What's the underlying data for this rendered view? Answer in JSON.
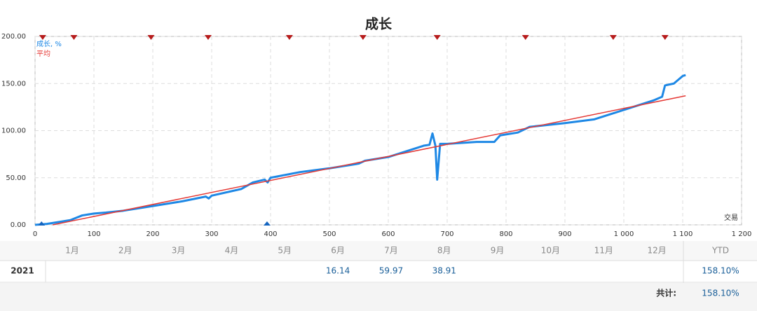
{
  "chart_data": {
    "type": "line",
    "title": "成长",
    "x_label": "交易",
    "x": [
      0,
      20,
      40,
      60,
      80,
      100,
      120,
      150,
      200,
      250,
      290,
      295,
      300,
      350,
      370,
      390,
      395,
      400,
      450,
      500,
      550,
      560,
      600,
      640,
      660,
      670,
      675,
      680,
      683,
      688,
      700,
      750,
      780,
      790,
      820,
      840,
      900,
      950,
      1000,
      1050,
      1065,
      1070,
      1085,
      1100,
      1105
    ],
    "series": [
      {
        "name": "成长, %",
        "color": "#1e88e5",
        "values": [
          0,
          1,
          3,
          5,
          10,
          12,
          13,
          15,
          20,
          25,
          30,
          28,
          31,
          38,
          45,
          48,
          45,
          50,
          56,
          60,
          65,
          68,
          72,
          80,
          84,
          85,
          97,
          84,
          48,
          86,
          86,
          88,
          88,
          95,
          98,
          104,
          108,
          112,
          122,
          132,
          136,
          148,
          150,
          158,
          159
        ]
      },
      {
        "name": "平均",
        "color": "#e53935",
        "x": [
          30,
          1105
        ],
        "values": [
          0,
          137
        ]
      }
    ],
    "top_markers": {
      "color": "#b71c1c",
      "x": [
        13,
        66,
        197,
        294,
        432,
        557,
        683,
        833,
        982,
        1070
      ]
    },
    "bottom_markers": {
      "color": "#1565c0",
      "x": [
        11,
        394
      ]
    },
    "xlim": [
      0,
      1200
    ],
    "xticks": [
      0,
      100,
      200,
      300,
      400,
      500,
      600,
      700,
      800,
      900,
      {
        "value": 1000,
        "label": "1 000"
      },
      {
        "value": 1100,
        "label": "1 100"
      },
      {
        "value": 1200,
        "label": "1 200"
      }
    ],
    "ylim": [
      0,
      200
    ],
    "yticks": [
      {
        "value": 0,
        "label": "0.00"
      },
      {
        "value": 50,
        "label": "50.00"
      },
      {
        "value": 100,
        "label": "100.00"
      },
      {
        "value": 150,
        "label": "150.00"
      },
      {
        "value": 200,
        "label": "200.00"
      }
    ],
    "grid": true,
    "legend": "top-left"
  },
  "table": {
    "header": [
      "1月",
      "2月",
      "3月",
      "4月",
      "5月",
      "6月",
      "7月",
      "8月",
      "9月",
      "10月",
      "11月",
      "12月"
    ],
    "ytd_header": "YTD",
    "rows": [
      {
        "year": "2021",
        "cells": [
          null,
          null,
          null,
          null,
          null,
          "16.14",
          "59.97",
          "38.91",
          null,
          null,
          null,
          null
        ],
        "ytd": "158.10%"
      }
    ],
    "total_label": "共计:",
    "total": "158.10%"
  }
}
